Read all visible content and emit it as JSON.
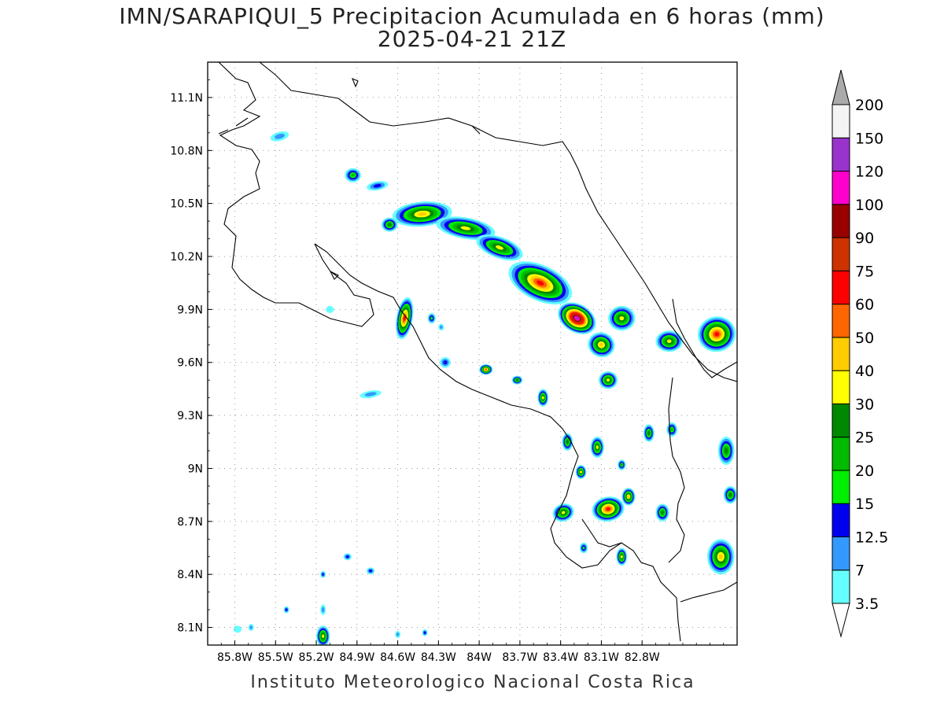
{
  "title": "IMN/SARAPIQUI_5 Precipitacion Acumulada en 6 horas (mm)",
  "subtitle": "2025-04-21 21Z",
  "footer": "Instituto Meteorologico Nacional Costa Rica",
  "map": {
    "region": "Costa Rica",
    "lon_range": [
      -86.0,
      -82.1
    ],
    "lat_range": [
      8.0,
      11.3
    ],
    "grid": true,
    "lat_ticks": [
      {
        "value": 11.1,
        "label": "11.1N"
      },
      {
        "value": 10.8,
        "label": "10.8N"
      },
      {
        "value": 10.5,
        "label": "10.5N"
      },
      {
        "value": 10.2,
        "label": "10.2N"
      },
      {
        "value": 9.9,
        "label": "9.9N"
      },
      {
        "value": 9.6,
        "label": "9.6N"
      },
      {
        "value": 9.3,
        "label": "9.3N"
      },
      {
        "value": 9.0,
        "label": "9N"
      },
      {
        "value": 8.7,
        "label": "8.7N"
      },
      {
        "value": 8.4,
        "label": "8.4N"
      },
      {
        "value": 8.1,
        "label": "8.1N"
      }
    ],
    "lon_ticks": [
      {
        "value": -85.8,
        "label": "85.8W"
      },
      {
        "value": -85.5,
        "label": "85.5W"
      },
      {
        "value": -85.2,
        "label": "85.2W"
      },
      {
        "value": -84.9,
        "label": "84.9W"
      },
      {
        "value": -84.6,
        "label": "84.6W"
      },
      {
        "value": -84.3,
        "label": "84.3W"
      },
      {
        "value": -84.0,
        "label": "84W"
      },
      {
        "value": -83.7,
        "label": "83.7W"
      },
      {
        "value": -83.4,
        "label": "83.4W"
      },
      {
        "value": -83.1,
        "label": "83.1W"
      },
      {
        "value": -82.8,
        "label": "82.8W"
      }
    ]
  },
  "colorbar": {
    "levels": [
      {
        "label": "3.5",
        "color": "#66ffff"
      },
      {
        "label": "7",
        "color": "#3399ff"
      },
      {
        "label": "12.5",
        "color": "#0000ee"
      },
      {
        "label": "15",
        "color": "#00ee00"
      },
      {
        "label": "20",
        "color": "#00bb00"
      },
      {
        "label": "25",
        "color": "#008800"
      },
      {
        "label": "30",
        "color": "#ffff00"
      },
      {
        "label": "40",
        "color": "#ffcc00"
      },
      {
        "label": "50",
        "color": "#ff6600"
      },
      {
        "label": "60",
        "color": "#ff0000"
      },
      {
        "label": "75",
        "color": "#cc3300"
      },
      {
        "label": "90",
        "color": "#990000"
      },
      {
        "label": "100",
        "color": "#ff00cc"
      },
      {
        "label": "120",
        "color": "#9933cc"
      },
      {
        "label": "150",
        "color": "#f4f4f4"
      },
      {
        "label": "200",
        "color": "#aaaaaa"
      }
    ]
  },
  "precip_cells": [
    {
      "lon": -85.47,
      "lat": 10.88,
      "rx": 0.07,
      "ry": 0.025,
      "max": 7,
      "rot": -15
    },
    {
      "lon": -84.93,
      "lat": 10.66,
      "rx": 0.06,
      "ry": 0.04,
      "max": 20,
      "rot": 0
    },
    {
      "lon": -84.75,
      "lat": 10.6,
      "rx": 0.08,
      "ry": 0.025,
      "max": 12.5,
      "rot": -10
    },
    {
      "lon": -84.66,
      "lat": 10.38,
      "rx": 0.06,
      "ry": 0.04,
      "max": 25,
      "rot": 0
    },
    {
      "lon": -84.42,
      "lat": 10.44,
      "rx": 0.22,
      "ry": 0.07,
      "max": 40,
      "rot": -5
    },
    {
      "lon": -84.1,
      "lat": 10.36,
      "rx": 0.22,
      "ry": 0.06,
      "max": 30,
      "rot": 10
    },
    {
      "lon": -83.85,
      "lat": 10.25,
      "rx": 0.18,
      "ry": 0.06,
      "max": 30,
      "rot": 20
    },
    {
      "lon": -83.55,
      "lat": 10.05,
      "rx": 0.25,
      "ry": 0.1,
      "max": 60,
      "rot": 25
    },
    {
      "lon": -83.28,
      "lat": 9.85,
      "rx": 0.15,
      "ry": 0.08,
      "max": 120,
      "rot": 30
    },
    {
      "lon": -83.1,
      "lat": 9.7,
      "rx": 0.1,
      "ry": 0.07,
      "max": 40,
      "rot": 20
    },
    {
      "lon": -82.95,
      "lat": 9.85,
      "rx": 0.1,
      "ry": 0.07,
      "max": 30,
      "rot": 0
    },
    {
      "lon": -82.25,
      "lat": 9.76,
      "rx": 0.14,
      "ry": 0.1,
      "max": 60,
      "rot": -10
    },
    {
      "lon": -82.6,
      "lat": 9.72,
      "rx": 0.1,
      "ry": 0.06,
      "max": 30,
      "rot": 0
    },
    {
      "lon": -84.55,
      "lat": 9.85,
      "rx": 0.06,
      "ry": 0.12,
      "max": 60,
      "rot": 10
    },
    {
      "lon": -83.95,
      "lat": 9.56,
      "rx": 0.05,
      "ry": 0.03,
      "max": 50,
      "rot": 0
    },
    {
      "lon": -83.72,
      "lat": 9.5,
      "rx": 0.04,
      "ry": 0.025,
      "max": 25,
      "rot": 0
    },
    {
      "lon": -83.53,
      "lat": 9.4,
      "rx": 0.04,
      "ry": 0.05,
      "max": 30,
      "rot": 0
    },
    {
      "lon": -83.05,
      "lat": 9.5,
      "rx": 0.07,
      "ry": 0.05,
      "max": 30,
      "rot": 0
    },
    {
      "lon": -83.35,
      "lat": 9.15,
      "rx": 0.04,
      "ry": 0.05,
      "max": 25,
      "rot": 0
    },
    {
      "lon": -83.13,
      "lat": 9.12,
      "rx": 0.05,
      "ry": 0.06,
      "max": 30,
      "rot": 0
    },
    {
      "lon": -82.75,
      "lat": 9.2,
      "rx": 0.04,
      "ry": 0.05,
      "max": 25,
      "rot": 0
    },
    {
      "lon": -82.58,
      "lat": 9.22,
      "rx": 0.04,
      "ry": 0.04,
      "max": 20,
      "rot": 0
    },
    {
      "lon": -82.18,
      "lat": 9.1,
      "rx": 0.06,
      "ry": 0.08,
      "max": 25,
      "rot": 0
    },
    {
      "lon": -83.25,
      "lat": 8.98,
      "rx": 0.04,
      "ry": 0.04,
      "max": 30,
      "rot": 0
    },
    {
      "lon": -82.95,
      "lat": 9.02,
      "rx": 0.03,
      "ry": 0.03,
      "max": 20,
      "rot": 0
    },
    {
      "lon": -83.38,
      "lat": 8.75,
      "rx": 0.08,
      "ry": 0.05,
      "max": 30,
      "rot": -20
    },
    {
      "lon": -83.05,
      "lat": 8.77,
      "rx": 0.12,
      "ry": 0.07,
      "max": 60,
      "rot": -10
    },
    {
      "lon": -82.9,
      "lat": 8.84,
      "rx": 0.05,
      "ry": 0.05,
      "max": 40,
      "rot": 0
    },
    {
      "lon": -82.95,
      "lat": 8.5,
      "rx": 0.04,
      "ry": 0.05,
      "max": 30,
      "rot": 0
    },
    {
      "lon": -83.23,
      "lat": 8.55,
      "rx": 0.03,
      "ry": 0.03,
      "max": 15,
      "rot": 0
    },
    {
      "lon": -82.65,
      "lat": 8.75,
      "rx": 0.05,
      "ry": 0.05,
      "max": 25,
      "rot": 0
    },
    {
      "lon": -82.22,
      "lat": 8.5,
      "rx": 0.1,
      "ry": 0.1,
      "max": 40,
      "rot": 0
    },
    {
      "lon": -82.15,
      "lat": 8.85,
      "rx": 0.05,
      "ry": 0.05,
      "max": 25,
      "rot": 0
    },
    {
      "lon": -84.97,
      "lat": 8.5,
      "rx": 0.03,
      "ry": 0.02,
      "max": 12.5,
      "rot": 0
    },
    {
      "lon": -84.8,
      "lat": 8.42,
      "rx": 0.03,
      "ry": 0.02,
      "max": 12.5,
      "rot": 0
    },
    {
      "lon": -85.15,
      "lat": 8.4,
      "rx": 0.02,
      "ry": 0.02,
      "max": 12.5,
      "rot": 0
    },
    {
      "lon": -85.42,
      "lat": 8.2,
      "rx": 0.02,
      "ry": 0.02,
      "max": 12.5,
      "rot": 0
    },
    {
      "lon": -85.15,
      "lat": 8.2,
      "rx": 0.02,
      "ry": 0.03,
      "max": 7,
      "rot": 0
    },
    {
      "lon": -85.15,
      "lat": 8.05,
      "rx": 0.05,
      "ry": 0.06,
      "max": 30,
      "rot": 0
    },
    {
      "lon": -85.78,
      "lat": 8.09,
      "rx": 0.03,
      "ry": 0.02,
      "max": 3.5,
      "rot": 0
    },
    {
      "lon": -85.68,
      "lat": 8.1,
      "rx": 0.02,
      "ry": 0.02,
      "max": 7,
      "rot": 0
    },
    {
      "lon": -84.6,
      "lat": 8.06,
      "rx": 0.02,
      "ry": 0.02,
      "max": 7,
      "rot": 0
    },
    {
      "lon": -84.4,
      "lat": 8.07,
      "rx": 0.02,
      "ry": 0.02,
      "max": 12.5,
      "rot": 0
    },
    {
      "lon": -84.8,
      "lat": 9.42,
      "rx": 0.08,
      "ry": 0.02,
      "max": 7,
      "rot": -10
    },
    {
      "lon": -84.25,
      "lat": 9.6,
      "rx": 0.04,
      "ry": 0.03,
      "max": 12.5,
      "rot": 0
    },
    {
      "lon": -84.28,
      "lat": 9.8,
      "rx": 0.02,
      "ry": 0.02,
      "max": 7,
      "rot": 0
    },
    {
      "lon": -85.1,
      "lat": 9.9,
      "rx": 0.03,
      "ry": 0.02,
      "max": 3.5,
      "rot": 0
    },
    {
      "lon": -84.35,
      "lat": 9.85,
      "rx": 0.03,
      "ry": 0.03,
      "max": 15,
      "rot": 0
    }
  ]
}
